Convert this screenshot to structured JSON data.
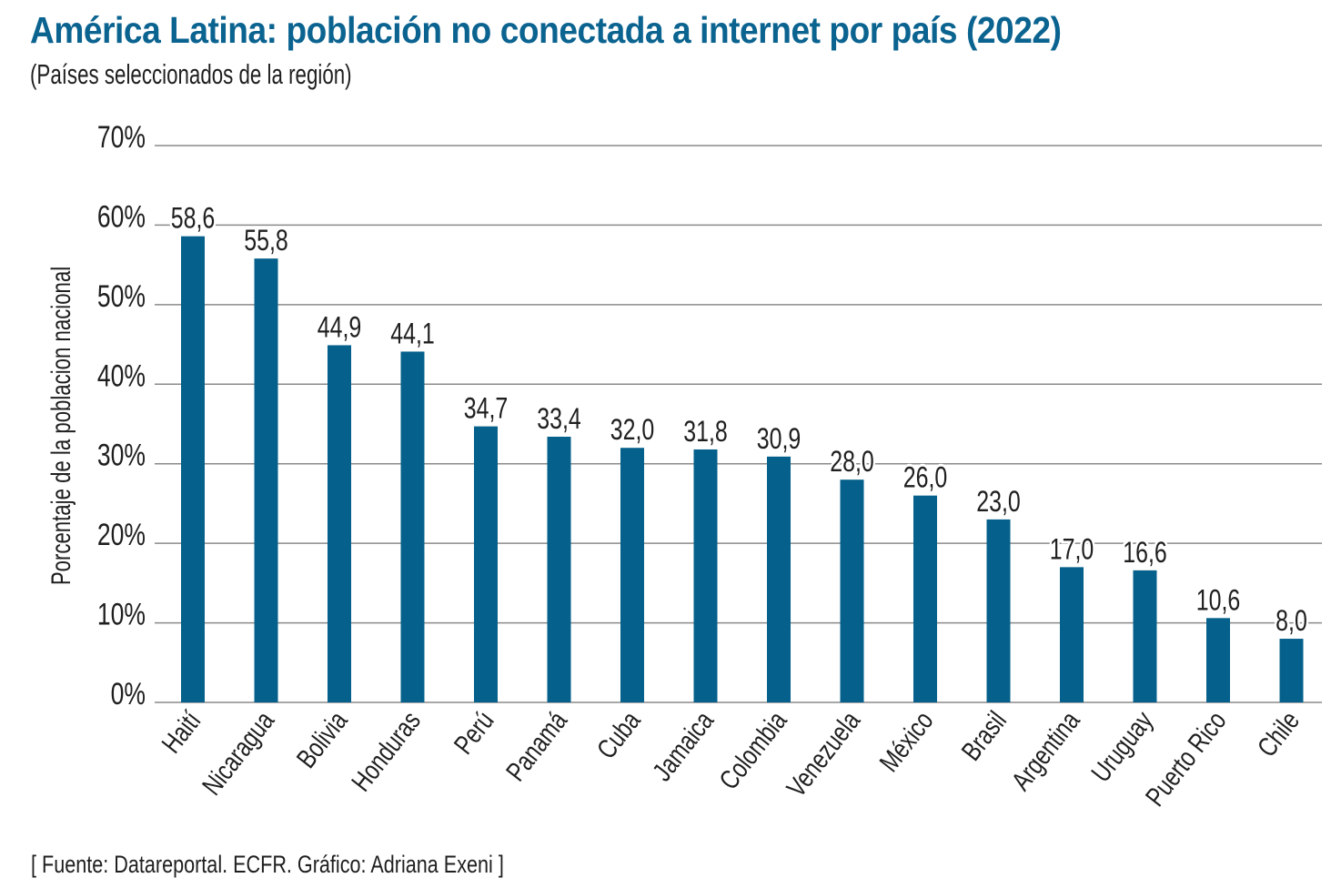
{
  "header": {
    "title": "América Latina: población no conectada a internet por país (2022)",
    "subtitle": "(Países seleccionados de la región)"
  },
  "footer": {
    "source": "[ Fuente: Datareportal. ECFR. Gráfico: Adriana Exeni ]"
  },
  "colors": {
    "title": "#0b6390",
    "bar": "#05608b",
    "gridline": "#8a8a8a",
    "text": "#1f1f1f"
  },
  "chart_data": {
    "type": "bar",
    "title": "América Latina: población no conectada a internet por país (2022)",
    "subtitle": "(Países seleccionados de la región)",
    "xlabel": "",
    "ylabel": "Porcentaje de la poblacion nacional",
    "ylim": [
      0,
      70
    ],
    "y_ticks": [
      0,
      10,
      20,
      30,
      40,
      50,
      60,
      70
    ],
    "y_tick_labels": [
      "0%",
      "10%",
      "20%",
      "30%",
      "40%",
      "50%",
      "60%",
      "70%"
    ],
    "grid": true,
    "legend": "none",
    "categories": [
      "Haití",
      "Nicaragua",
      "Bolivia",
      "Honduras",
      "Perú",
      "Panamá",
      "Cuba",
      "Jamaica",
      "Colombia",
      "Venezuela",
      "México",
      "Brasil",
      "Argentina",
      "Uruguay",
      "Puerto Rico",
      "Chile"
    ],
    "values": [
      58.6,
      55.8,
      44.9,
      44.1,
      34.7,
      33.4,
      32.0,
      31.8,
      30.9,
      28.0,
      26.0,
      23.0,
      17.0,
      16.6,
      10.6,
      8.0
    ],
    "data_labels": [
      "58,6",
      "55,8",
      "44,9",
      "44,1",
      "34,7",
      "33,4",
      "32,0",
      "31,8",
      "30,9",
      "28,0",
      "26,0",
      "23,0",
      "17,0",
      "16,6",
      "10,6",
      "8,0"
    ],
    "category_label_rotation": "diagonal"
  }
}
